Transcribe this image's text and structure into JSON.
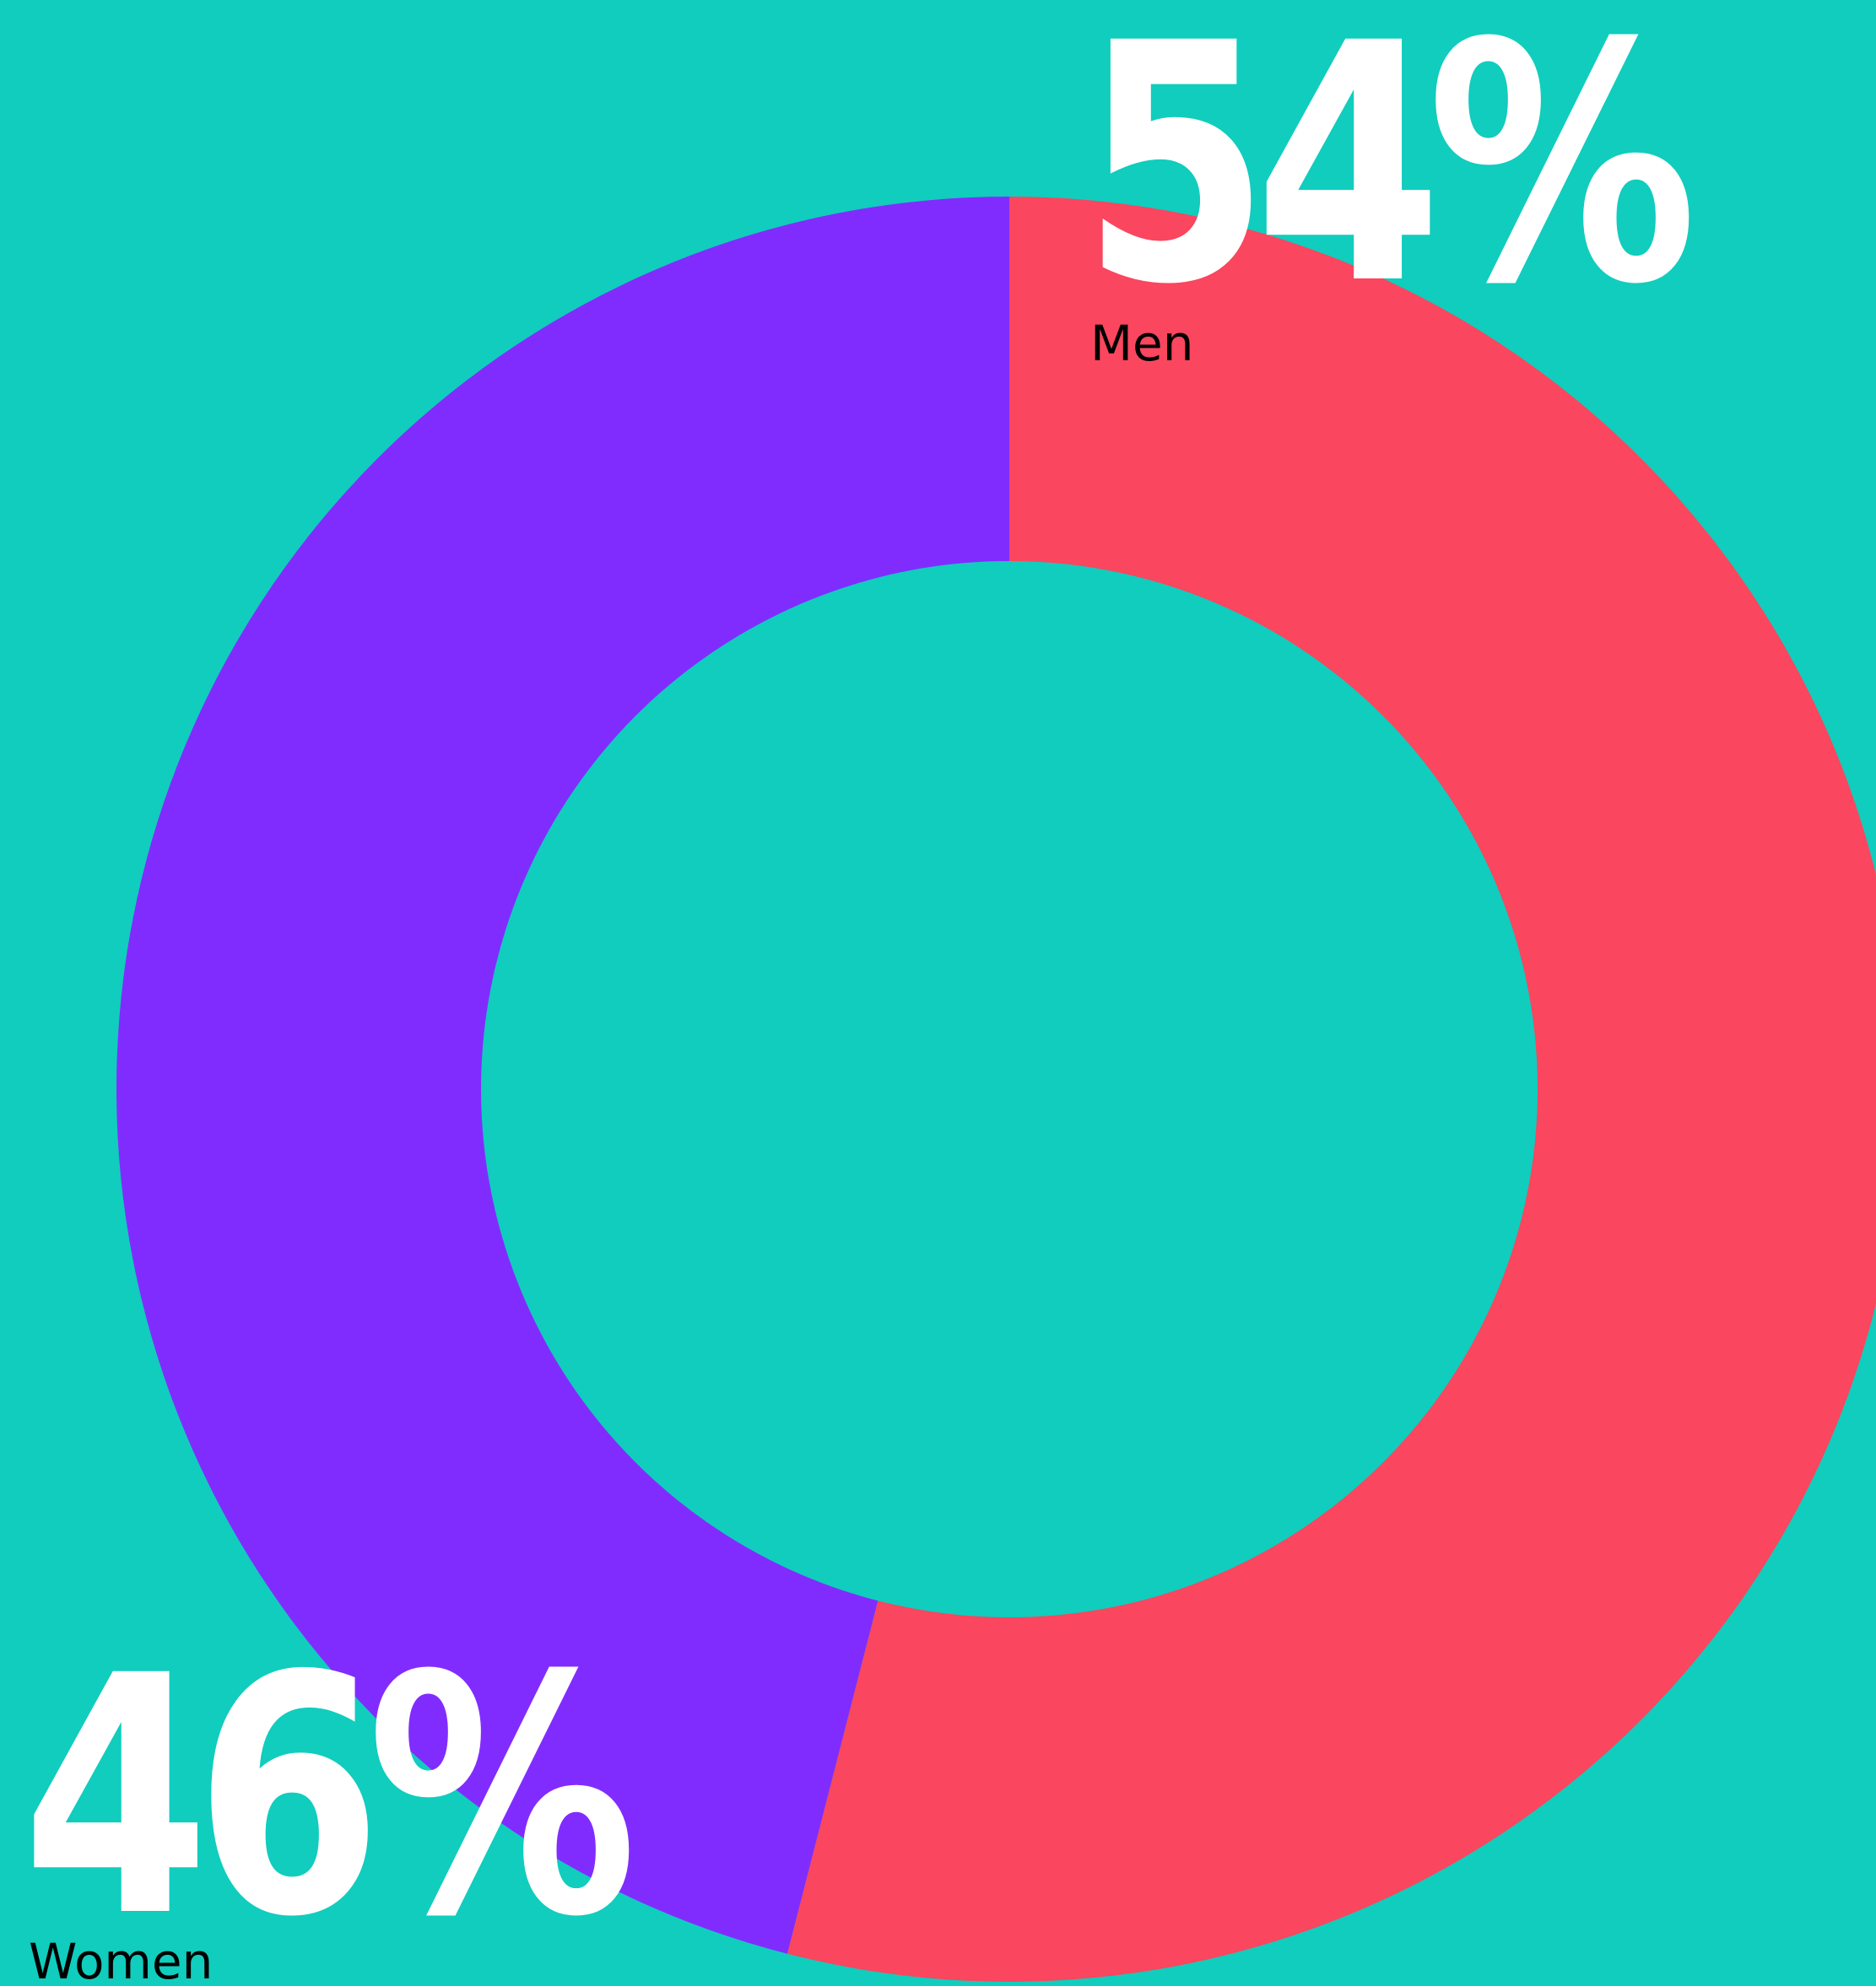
{
  "chart_data": {
    "type": "pie",
    "donut": true,
    "title": "",
    "categories": [
      "Men",
      "Women"
    ],
    "values": [
      54,
      46
    ],
    "value_labels": [
      "54%",
      "46%"
    ],
    "colors": [
      "#FA465E",
      "#812CFF"
    ],
    "background": "#10CDBE",
    "start_angle_deg": 0,
    "direction": "clockwise",
    "legend": "none"
  }
}
